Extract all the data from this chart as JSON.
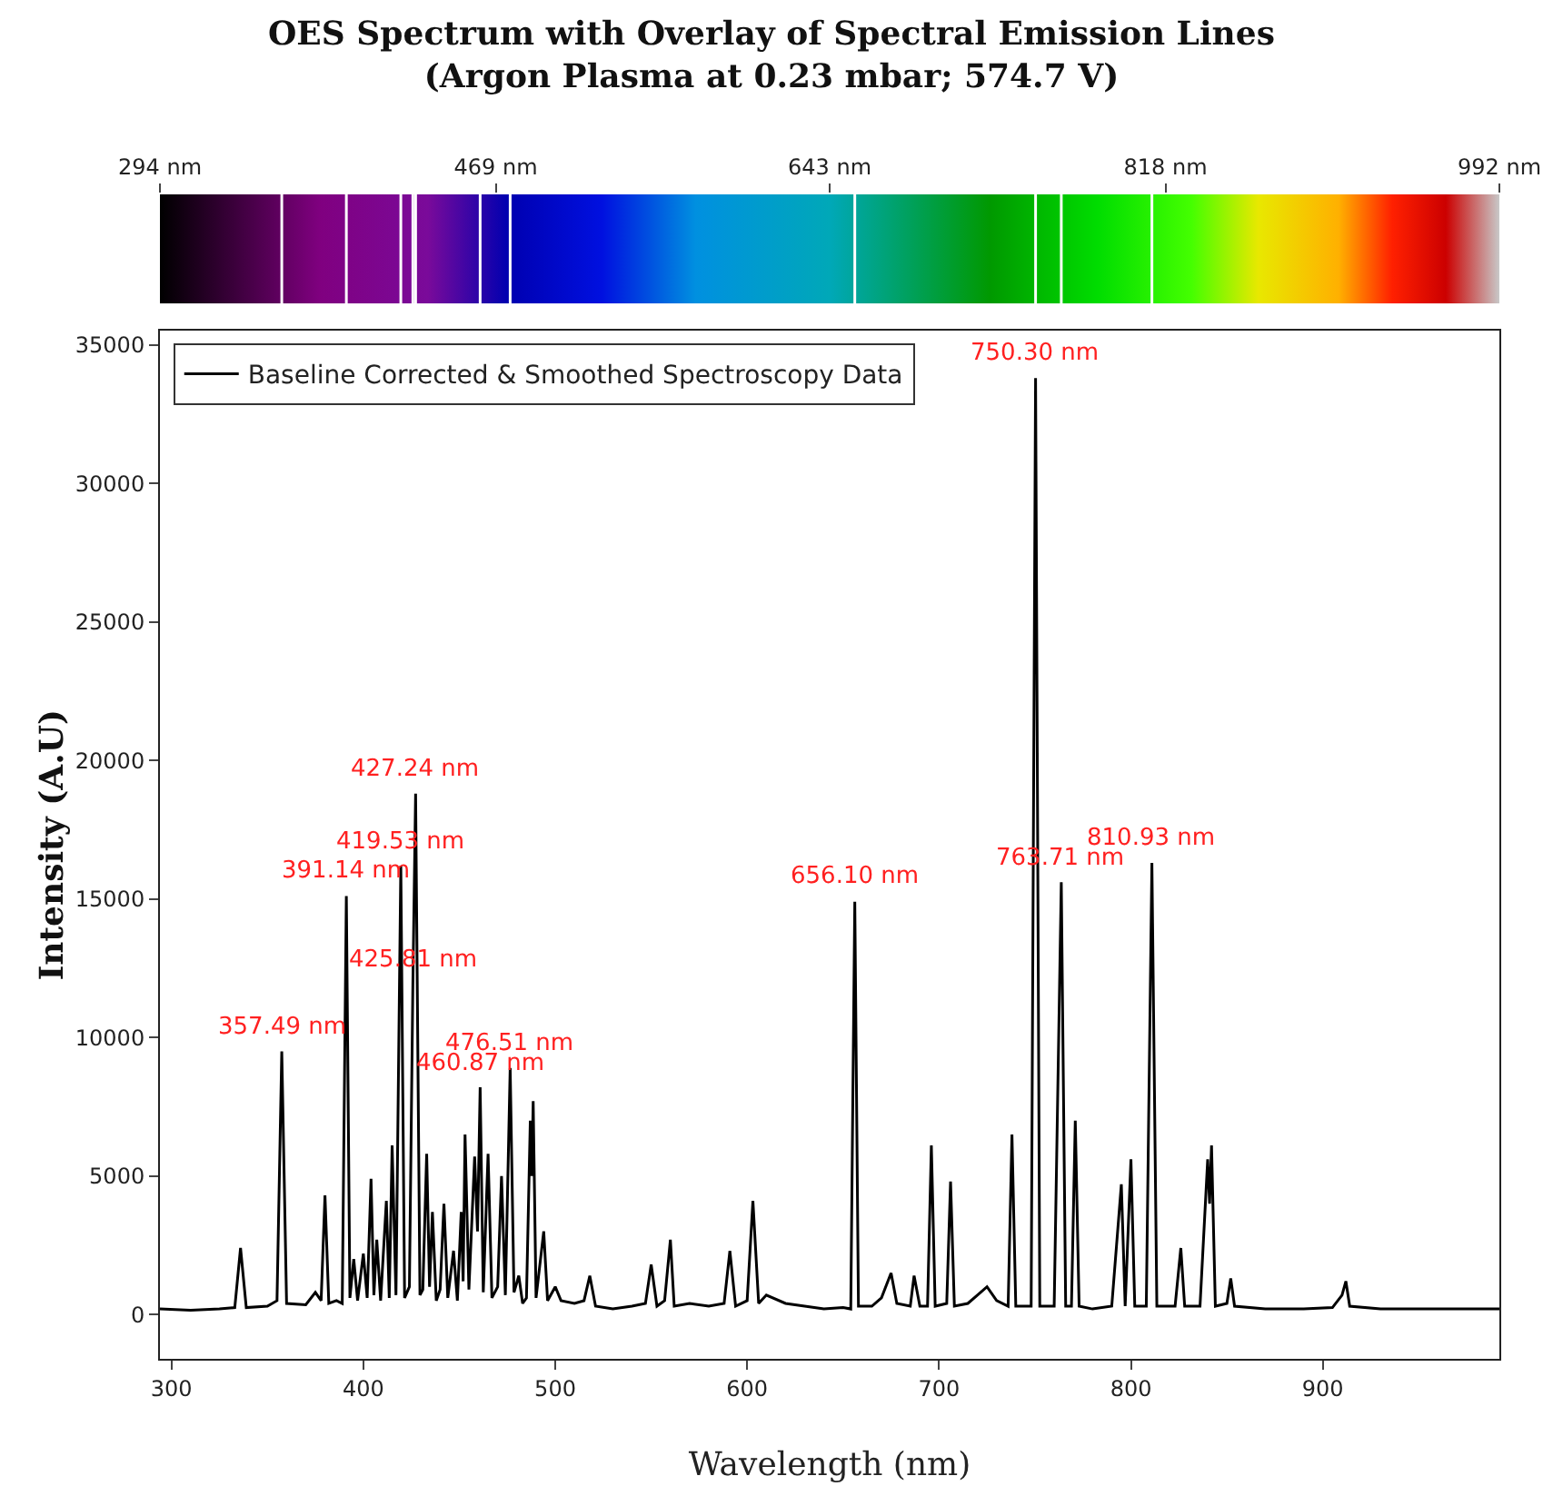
{
  "chart_data": {
    "type": "line",
    "title": "OES Spectrum with Overlay of Spectral Emission Lines\n(Argon Plasma at 0.23 mbar; 574.7 V)",
    "xlabel": "Wavelength (nm)",
    "ylabel": "Intensity (A.U)",
    "series": [
      {
        "name": "Baseline Corrected & Smoothed Spectroscopy Data",
        "color": "#000000",
        "x": [
          294,
          310,
          325,
          333,
          336,
          339,
          350,
          355,
          357.49,
          360,
          370,
          375,
          378,
          380,
          382,
          386,
          389,
          391.14,
          393,
          395,
          397,
          400,
          402,
          404,
          405.5,
          407,
          409,
          412,
          413.5,
          415,
          417,
          419.53,
          421.5,
          424,
          425.81,
          427.24,
          429.5,
          431,
          433,
          434.5,
          436,
          438,
          440,
          442,
          444,
          447,
          449,
          451,
          452,
          453,
          455,
          458,
          459.5,
          460.87,
          462.5,
          465,
          467,
          470,
          472,
          474,
          476.51,
          478.5,
          481,
          483,
          485,
          487,
          487.8,
          488.5,
          490,
          494,
          496,
          500,
          503,
          510,
          515,
          518,
          521,
          530,
          540,
          547,
          550,
          553,
          557,
          560,
          562,
          570,
          580,
          588,
          591,
          594,
          600,
          603,
          606,
          610,
          620,
          630,
          640,
          650,
          654,
          656.1,
          658,
          665,
          670,
          675,
          678,
          685,
          687,
          690,
          694,
          696,
          698,
          704,
          706,
          708,
          715,
          720,
          725,
          730,
          736,
          738,
          740,
          748,
          750.3,
          752.5,
          760,
          763.71,
          766,
          769,
          771,
          773,
          780,
          790,
          795,
          797,
          800,
          802,
          808,
          810.93,
          813.5,
          823,
          826,
          828,
          836,
          840,
          841,
          842,
          844,
          850,
          852,
          854,
          870,
          890,
          905,
          910,
          912,
          914,
          930,
          950,
          970,
          992
        ],
        "values": [
          200,
          150,
          200,
          250,
          2400,
          250,
          300,
          500,
          9500,
          400,
          350,
          800,
          500,
          4300,
          400,
          500,
          400,
          15100,
          600,
          2000,
          500,
          2200,
          600,
          4900,
          700,
          2700,
          500,
          4100,
          600,
          6100,
          700,
          16200,
          600,
          1000,
          11900,
          18800,
          700,
          900,
          5800,
          1000,
          3700,
          500,
          900,
          4000,
          600,
          2300,
          500,
          3700,
          1200,
          6500,
          900,
          5700,
          3000,
          8200,
          800,
          5800,
          600,
          1000,
          5000,
          700,
          8900,
          800,
          1400,
          400,
          600,
          7000,
          5000,
          7700,
          600,
          3000,
          500,
          1000,
          500,
          400,
          500,
          1400,
          300,
          200,
          300,
          400,
          1800,
          300,
          500,
          2700,
          300,
          400,
          300,
          400,
          2300,
          300,
          500,
          4100,
          400,
          700,
          400,
          300,
          200,
          250,
          200,
          14900,
          300,
          300,
          600,
          1500,
          400,
          300,
          1400,
          300,
          300,
          6100,
          300,
          400,
          4800,
          300,
          400,
          700,
          1000,
          500,
          300,
          6500,
          300,
          300,
          33800,
          300,
          300,
          15600,
          300,
          300,
          7000,
          300,
          200,
          300,
          4700,
          300,
          5600,
          300,
          300,
          16300,
          300,
          300,
          2400,
          300,
          300,
          5600,
          4000,
          6100,
          300,
          400,
          1300,
          300,
          200,
          200,
          250,
          700,
          1200,
          300,
          200,
          200,
          200,
          200
        ]
      }
    ],
    "xlim": [
      294,
      992
    ],
    "xticks": [
      300,
      400,
      500,
      600,
      700,
      800,
      900
    ],
    "ylim": [
      -1600,
      35500
    ],
    "yticks": [
      0,
      5000,
      10000,
      15000,
      20000,
      25000,
      30000,
      35000
    ],
    "x2lim": [
      294,
      992
    ],
    "x2ticks": [
      {
        "value": 294,
        "label": "294 nm"
      },
      {
        "value": 469,
        "label": "469 nm"
      },
      {
        "value": 643,
        "label": "643 nm"
      },
      {
        "value": 818,
        "label": "818 nm"
      },
      {
        "value": 992,
        "label": "992 nm"
      }
    ],
    "annotations": [
      {
        "text": "357.49 nm",
        "x": 357.49,
        "y": 9500
      },
      {
        "text": "391.14 nm",
        "x": 391.14,
        "y": 15100
      },
      {
        "text": "419.53 nm",
        "x": 419.53,
        "y": 16200
      },
      {
        "text": "425.81 nm",
        "x": 425.81,
        "y": 11900
      },
      {
        "text": "427.24 nm",
        "x": 427.24,
        "y": 18800
      },
      {
        "text": "460.87 nm",
        "x": 460.87,
        "y": 8200
      },
      {
        "text": "476.51 nm",
        "x": 476.51,
        "y": 8900
      },
      {
        "text": "656.10 nm",
        "x": 656.1,
        "y": 14900
      },
      {
        "text": "750.30 nm",
        "x": 750.3,
        "y": 33800
      },
      {
        "text": "763.71 nm",
        "x": 763.71,
        "y": 15600
      },
      {
        "text": "810.93 nm",
        "x": 810.93,
        "y": 16300
      }
    ],
    "legend": "top left",
    "grid": false,
    "marker": "none",
    "line_style": "solid"
  }
}
